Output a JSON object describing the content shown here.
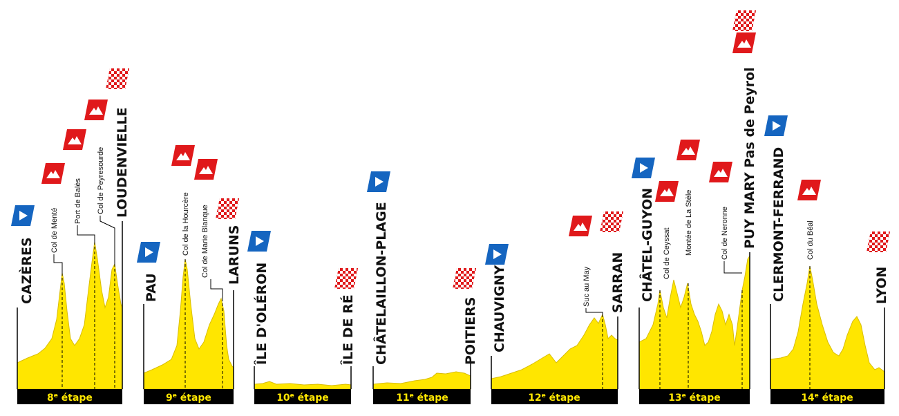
{
  "colors": {
    "profile_fill": "#ffe600",
    "profile_stroke": "#e6c800",
    "bar": "#000000",
    "bar_text": "#ffe600",
    "start_flag": "#1565c0",
    "climb_flag": "#e0191b",
    "finish_flag": "#e0191b"
  },
  "icons": {
    "start": "play-arrow-flag-icon",
    "climb": "mountain-flag-icon",
    "finish": "checkered-flag-icon"
  },
  "stages": [
    {
      "num": "8",
      "suffix": "e",
      "word": " étape",
      "start": "CAZÈRES",
      "finish": "LOUDENVIELLE",
      "climbs": [
        "Col de Menté",
        "Port de Balès",
        "Col de Peyresourde"
      ]
    },
    {
      "num": "9",
      "suffix": "e",
      "word": " étape",
      "start": "PAU",
      "finish": "LARUNS",
      "climbs": [
        "Col de la Hourcère",
        "Col de Marie Blanque"
      ]
    },
    {
      "num": "10",
      "suffix": "e",
      "word": " étape",
      "start": "ÎLE D'OLÉRON",
      "finish": "ÎLE DE RÉ",
      "climbs": []
    },
    {
      "num": "11",
      "suffix": "e",
      "word": " étape",
      "start": "CHÂTELAILLON-PLAGE",
      "finish": "POITIERS",
      "climbs": []
    },
    {
      "num": "12",
      "suffix": "e",
      "word": " étape",
      "start": "CHAUVIGNY",
      "finish": "SARRAN",
      "climbs": [
        "Suc au May"
      ]
    },
    {
      "num": "13",
      "suffix": "e",
      "word": " étape",
      "start": "CHÂTEL-GUYON",
      "finish": "PUY MARY Pas de Peyrol",
      "climbs": [
        "Col de Ceyssat",
        "Montée de La Stèle",
        "Col de Neronne"
      ]
    },
    {
      "num": "14",
      "suffix": "e",
      "word": " étape",
      "start": "CLERMONT-FERRAND",
      "finish": "LYON",
      "climbs": [
        "Col du Béal"
      ]
    }
  ]
}
